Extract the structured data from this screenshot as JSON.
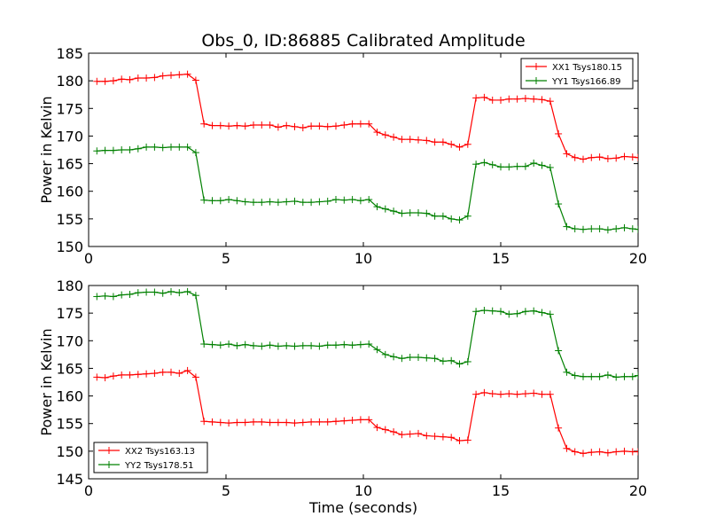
{
  "chart_data": [
    {
      "type": "line",
      "title": "Obs_0, ID:86885 Calibrated Amplitude",
      "xlabel": "",
      "ylabel": "Power in Kelvin",
      "xlim": [
        0,
        20
      ],
      "ylim": [
        150,
        185
      ],
      "xticks": [
        "0",
        "5",
        "10",
        "15",
        "20"
      ],
      "yticks": [
        "150",
        "155",
        "160",
        "165",
        "170",
        "175",
        "180",
        "185"
      ],
      "legend_position": "top-right",
      "series": [
        {
          "name": "XX1 Tsys180.15",
          "color": "#ff0000",
          "x": [
            0.3,
            0.6,
            0.9,
            1.2,
            1.5,
            1.8,
            2.1,
            2.4,
            2.7,
            3.0,
            3.3,
            3.6,
            3.9,
            4.2,
            4.5,
            4.8,
            5.1,
            5.4,
            5.7,
            6.0,
            6.3,
            6.6,
            6.9,
            7.2,
            7.5,
            7.8,
            8.1,
            8.4,
            8.7,
            9.0,
            9.3,
            9.6,
            9.9,
            10.2,
            10.5,
            10.8,
            11.1,
            11.4,
            11.7,
            12.0,
            12.3,
            12.6,
            12.9,
            13.2,
            13.5,
            13.8,
            14.1,
            14.4,
            14.7,
            15.0,
            15.3,
            15.6,
            15.9,
            16.2,
            16.5,
            16.8,
            17.1,
            17.4,
            17.7,
            18.0,
            18.3,
            18.6,
            18.9,
            19.2,
            19.5,
            19.8,
            20.0
          ],
          "values": [
            179.9,
            179.9,
            180.0,
            180.3,
            180.2,
            180.5,
            180.5,
            180.6,
            180.9,
            181.0,
            181.1,
            181.2,
            180.1,
            172.2,
            171.9,
            171.9,
            171.8,
            171.9,
            171.8,
            172.0,
            172.0,
            172.0,
            171.6,
            171.9,
            171.7,
            171.5,
            171.8,
            171.8,
            171.7,
            171.8,
            172.0,
            172.2,
            172.2,
            172.2,
            170.7,
            170.2,
            169.8,
            169.4,
            169.4,
            169.3,
            169.2,
            168.9,
            168.9,
            168.5,
            168.0,
            168.5,
            176.9,
            177.0,
            176.5,
            176.5,
            176.7,
            176.7,
            176.8,
            176.7,
            176.6,
            176.3,
            170.4,
            166.8,
            166.1,
            165.8,
            166.1,
            166.2,
            165.9,
            166.0,
            166.3,
            166.2,
            166.1
          ]
        },
        {
          "name": "YY1 Tsys166.89",
          "color": "#008000",
          "x": [
            0.3,
            0.6,
            0.9,
            1.2,
            1.5,
            1.8,
            2.1,
            2.4,
            2.7,
            3.0,
            3.3,
            3.6,
            3.9,
            4.2,
            4.5,
            4.8,
            5.1,
            5.4,
            5.7,
            6.0,
            6.3,
            6.6,
            6.9,
            7.2,
            7.5,
            7.8,
            8.1,
            8.4,
            8.7,
            9.0,
            9.3,
            9.6,
            9.9,
            10.2,
            10.5,
            10.8,
            11.1,
            11.4,
            11.7,
            12.0,
            12.3,
            12.6,
            12.9,
            13.2,
            13.5,
            13.8,
            14.1,
            14.4,
            14.7,
            15.0,
            15.3,
            15.6,
            15.9,
            16.2,
            16.5,
            16.8,
            17.1,
            17.4,
            17.7,
            18.0,
            18.3,
            18.6,
            18.9,
            19.2,
            19.5,
            19.8,
            20.0
          ],
          "values": [
            167.3,
            167.4,
            167.4,
            167.5,
            167.5,
            167.7,
            168.0,
            168.0,
            167.9,
            168.0,
            168.0,
            168.0,
            167.0,
            158.4,
            158.3,
            158.3,
            158.5,
            158.3,
            158.1,
            158.0,
            158.0,
            158.1,
            158.0,
            158.1,
            158.2,
            158.0,
            158.0,
            158.1,
            158.2,
            158.5,
            158.4,
            158.5,
            158.3,
            158.5,
            157.2,
            156.8,
            156.4,
            156.0,
            156.1,
            156.1,
            156.0,
            155.5,
            155.5,
            155.0,
            154.8,
            155.5,
            164.9,
            165.2,
            164.8,
            164.4,
            164.4,
            164.5,
            164.5,
            165.1,
            164.7,
            164.3,
            157.7,
            153.6,
            153.2,
            153.1,
            153.2,
            153.2,
            153.0,
            153.2,
            153.4,
            153.2,
            153.1
          ]
        }
      ]
    },
    {
      "type": "line",
      "title": "",
      "xlabel": "Time (seconds)",
      "ylabel": "Power in Kelvin",
      "xlim": [
        0,
        20
      ],
      "ylim": [
        145,
        180
      ],
      "xticks": [
        "0",
        "5",
        "10",
        "15",
        "20"
      ],
      "yticks": [
        "145",
        "150",
        "155",
        "160",
        "165",
        "170",
        "175",
        "180"
      ],
      "legend_position": "bottom-left",
      "series": [
        {
          "name": "XX2 Tsys163.13",
          "color": "#ff0000",
          "x": [
            0.3,
            0.6,
            0.9,
            1.2,
            1.5,
            1.8,
            2.1,
            2.4,
            2.7,
            3.0,
            3.3,
            3.6,
            3.9,
            4.2,
            4.5,
            4.8,
            5.1,
            5.4,
            5.7,
            6.0,
            6.3,
            6.6,
            6.9,
            7.2,
            7.5,
            7.8,
            8.1,
            8.4,
            8.7,
            9.0,
            9.3,
            9.6,
            9.9,
            10.2,
            10.5,
            10.8,
            11.1,
            11.4,
            11.7,
            12.0,
            12.3,
            12.6,
            12.9,
            13.2,
            13.5,
            13.8,
            14.1,
            14.4,
            14.7,
            15.0,
            15.3,
            15.6,
            15.9,
            16.2,
            16.5,
            16.8,
            17.1,
            17.4,
            17.7,
            18.0,
            18.3,
            18.6,
            18.9,
            19.2,
            19.5,
            19.8,
            20.0
          ],
          "values": [
            163.4,
            163.3,
            163.6,
            163.8,
            163.8,
            163.9,
            164.0,
            164.1,
            164.3,
            164.3,
            164.1,
            164.6,
            163.4,
            155.4,
            155.3,
            155.2,
            155.1,
            155.2,
            155.2,
            155.3,
            155.3,
            155.2,
            155.2,
            155.2,
            155.1,
            155.2,
            155.3,
            155.3,
            155.3,
            155.4,
            155.5,
            155.6,
            155.7,
            155.7,
            154.3,
            153.9,
            153.5,
            153.0,
            153.1,
            153.2,
            152.8,
            152.7,
            152.6,
            152.5,
            151.9,
            152.0,
            160.3,
            160.6,
            160.4,
            160.3,
            160.4,
            160.3,
            160.4,
            160.5,
            160.3,
            160.3,
            154.2,
            150.5,
            149.9,
            149.6,
            149.8,
            149.9,
            149.7,
            149.9,
            150.0,
            149.9,
            149.9
          ]
        },
        {
          "name": "YY2 Tsys178.51",
          "color": "#008000",
          "x": [
            0.3,
            0.6,
            0.9,
            1.2,
            1.5,
            1.8,
            2.1,
            2.4,
            2.7,
            3.0,
            3.3,
            3.6,
            3.9,
            4.2,
            4.5,
            4.8,
            5.1,
            5.4,
            5.7,
            6.0,
            6.3,
            6.6,
            6.9,
            7.2,
            7.5,
            7.8,
            8.1,
            8.4,
            8.7,
            9.0,
            9.3,
            9.6,
            9.9,
            10.2,
            10.5,
            10.8,
            11.1,
            11.4,
            11.7,
            12.0,
            12.3,
            12.6,
            12.9,
            13.2,
            13.5,
            13.8,
            14.1,
            14.4,
            14.7,
            15.0,
            15.3,
            15.6,
            15.9,
            16.2,
            16.5,
            16.8,
            17.1,
            17.4,
            17.7,
            18.0,
            18.3,
            18.6,
            18.9,
            19.2,
            19.5,
            19.8,
            20.0
          ],
          "values": [
            178.0,
            178.1,
            178.0,
            178.3,
            178.4,
            178.7,
            178.8,
            178.8,
            178.6,
            178.9,
            178.7,
            178.9,
            178.2,
            169.4,
            169.3,
            169.2,
            169.4,
            169.1,
            169.3,
            169.1,
            169.0,
            169.2,
            169.0,
            169.1,
            169.0,
            169.1,
            169.1,
            169.0,
            169.2,
            169.2,
            169.3,
            169.2,
            169.3,
            169.4,
            168.4,
            167.5,
            167.1,
            166.8,
            167.0,
            167.0,
            166.9,
            166.8,
            166.3,
            166.4,
            165.8,
            166.2,
            175.3,
            175.5,
            175.4,
            175.3,
            174.8,
            174.9,
            175.3,
            175.4,
            175.1,
            174.8,
            168.2,
            164.3,
            163.7,
            163.5,
            163.5,
            163.5,
            163.8,
            163.4,
            163.5,
            163.5,
            163.7
          ]
        }
      ]
    }
  ]
}
